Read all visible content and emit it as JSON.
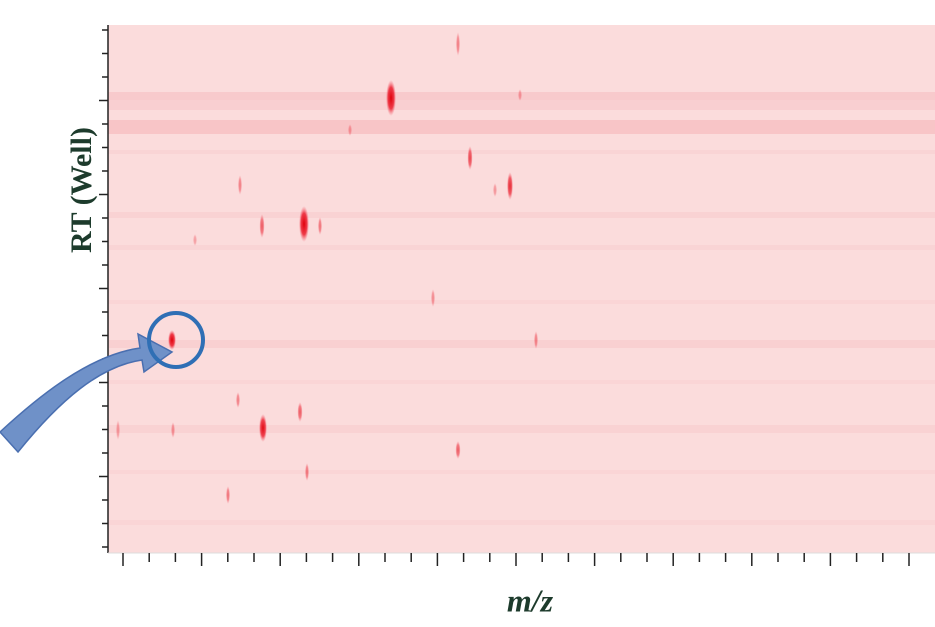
{
  "figure": {
    "y_label": "RT (Well)",
    "x_label": "m/z"
  }
}
